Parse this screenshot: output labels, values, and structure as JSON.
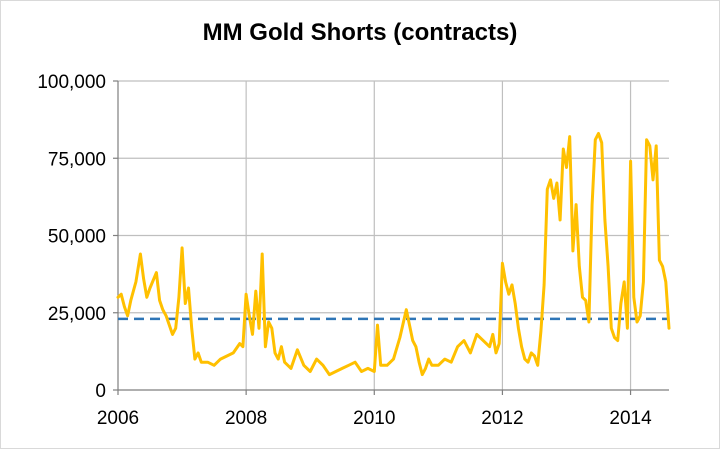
{
  "chart_data": {
    "type": "line",
    "title": "MM Gold Shorts (contracts)",
    "xlabel": "",
    "ylabel": "",
    "xlim": [
      2006,
      2014.6
    ],
    "ylim": [
      0,
      100000
    ],
    "x_ticks": [
      2006,
      2008,
      2010,
      2012,
      2014
    ],
    "x_tick_labels": [
      "2006",
      "2008",
      "2010",
      "2012",
      "2014"
    ],
    "y_ticks": [
      0,
      25000,
      50000,
      75000,
      100000
    ],
    "y_tick_labels": [
      "0",
      "25,000",
      "50,000",
      "75,000",
      "100,000"
    ],
    "grid": true,
    "legend": "none",
    "colors": {
      "series": "#FFC000",
      "reference": "#2E75B6",
      "grid": "#bfbfbf",
      "axis": "#7f7f7f"
    },
    "reference_line": {
      "style": "dashed",
      "value": 23000
    },
    "series": [
      {
        "x": [
          2006.0,
          2006.05,
          2006.1,
          2006.15,
          2006.2,
          2006.28,
          2006.35,
          2006.4,
          2006.45,
          2006.5,
          2006.6,
          2006.65,
          2006.7,
          2006.75,
          2006.85,
          2006.9,
          2006.95,
          2007.0,
          2007.05,
          2007.1,
          2007.15,
          2007.2,
          2007.25,
          2007.3,
          2007.4,
          2007.5,
          2007.6,
          2007.7,
          2007.8,
          2007.9,
          2007.95,
          2008.0,
          2008.05,
          2008.1,
          2008.15,
          2008.2,
          2008.25,
          2008.3,
          2008.35,
          2008.4,
          2008.45,
          2008.5,
          2008.55,
          2008.6,
          2008.7,
          2008.8,
          2008.9,
          2009.0,
          2009.1,
          2009.2,
          2009.3,
          2009.4,
          2009.5,
          2009.6,
          2009.7,
          2009.8,
          2009.9,
          2010.0,
          2010.05,
          2010.1,
          2010.2,
          2010.3,
          2010.4,
          2010.5,
          2010.55,
          2010.6,
          2010.65,
          2010.7,
          2010.75,
          2010.8,
          2010.85,
          2010.9,
          2011.0,
          2011.1,
          2011.2,
          2011.3,
          2011.4,
          2011.5,
          2011.6,
          2011.7,
          2011.8,
          2011.85,
          2011.9,
          2011.95,
          2012.0,
          2012.05,
          2012.1,
          2012.15,
          2012.2,
          2012.25,
          2012.3,
          2012.35,
          2012.4,
          2012.45,
          2012.5,
          2012.55,
          2012.6,
          2012.65,
          2012.7,
          2012.75,
          2012.8,
          2012.85,
          2012.9,
          2012.95,
          2013.0,
          2013.05,
          2013.1,
          2013.15,
          2013.2,
          2013.25,
          2013.3,
          2013.35,
          2013.4,
          2013.45,
          2013.5,
          2013.55,
          2013.6,
          2013.65,
          2013.7,
          2013.75,
          2013.8,
          2013.85,
          2013.9,
          2013.95,
          2014.0,
          2014.05,
          2014.1,
          2014.15,
          2014.2,
          2014.25,
          2014.3,
          2014.35,
          2014.4,
          2014.45,
          2014.5,
          2014.55,
          2014.6
        ],
        "values": [
          30000,
          31000,
          27000,
          24000,
          29000,
          35000,
          44000,
          36000,
          30000,
          33000,
          38000,
          29000,
          26000,
          24000,
          18000,
          20000,
          30000,
          46000,
          28000,
          33000,
          20000,
          10000,
          12000,
          9000,
          9000,
          8000,
          10000,
          11000,
          12000,
          15000,
          14000,
          31000,
          24000,
          18000,
          32000,
          20000,
          44000,
          14000,
          22000,
          20000,
          12000,
          10000,
          14000,
          9000,
          7000,
          13000,
          8000,
          6000,
          10000,
          8000,
          5000,
          6000,
          7000,
          8000,
          9000,
          6000,
          7000,
          6000,
          21000,
          8000,
          8000,
          10000,
          17000,
          26000,
          21000,
          16000,
          14000,
          9000,
          5000,
          7000,
          10000,
          8000,
          8000,
          10000,
          9000,
          14000,
          16000,
          12000,
          18000,
          16000,
          14000,
          18000,
          12000,
          15000,
          41000,
          35000,
          31000,
          34000,
          28000,
          20000,
          14000,
          10000,
          9000,
          12000,
          11000,
          8000,
          19000,
          34000,
          65000,
          68000,
          62000,
          67000,
          55000,
          78000,
          72000,
          82000,
          45000,
          60000,
          40000,
          30000,
          29000,
          22000,
          60000,
          81000,
          83000,
          80000,
          55000,
          40000,
          20000,
          17000,
          16000,
          28000,
          35000,
          20000,
          74000,
          30000,
          22000,
          24000,
          35000,
          81000,
          79000,
          68000,
          79000,
          42000,
          40000,
          35000,
          20000
        ]
      }
    ]
  }
}
